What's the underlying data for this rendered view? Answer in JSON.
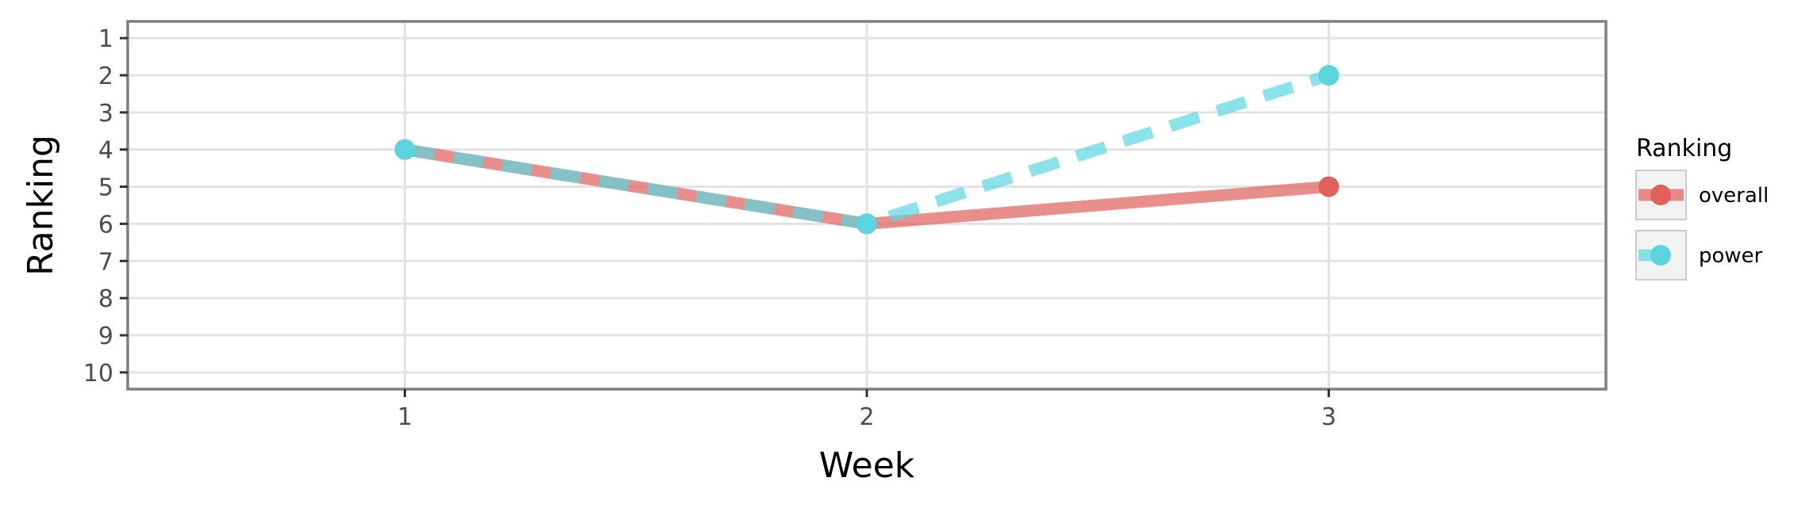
{
  "chart_data": {
    "type": "line",
    "xlabel": "Week",
    "ylabel": "Ranking",
    "x": [
      1,
      2,
      3
    ],
    "xlim": [
      0.4,
      3.6
    ],
    "ylim": [
      10.45,
      0.55
    ],
    "y_reversed": true,
    "x_ticks": [
      "1",
      "2",
      "3"
    ],
    "y_ticks": [
      "1",
      "2",
      "3",
      "4",
      "5",
      "6",
      "7",
      "8",
      "9",
      "10"
    ],
    "grid": true,
    "legend": {
      "title": "Ranking",
      "placement": "right"
    },
    "series": [
      {
        "name": "overall",
        "values": [
          4,
          6,
          5
        ],
        "color": "#e0605a",
        "line_style": "solid"
      },
      {
        "name": "power",
        "values": [
          4,
          6,
          2
        ],
        "color": "#5ad5de",
        "line_style": "dashed"
      }
    ]
  }
}
